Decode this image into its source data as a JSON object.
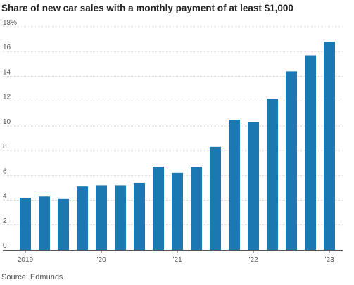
{
  "chart_data": {
    "type": "bar",
    "title": "Share of new car sales with a monthly payment of at least $1,000",
    "source": "Source: Edmunds",
    "xlabel": "",
    "ylabel": "",
    "ylim": [
      0,
      18
    ],
    "y_ticks": [
      0,
      2,
      4,
      6,
      8,
      10,
      12,
      14,
      16,
      18
    ],
    "y_tick_labels": [
      "0",
      "2",
      "4",
      "6",
      "8",
      "10",
      "12",
      "14",
      "16",
      "18%"
    ],
    "categories": [
      "2019 Q1",
      "2019 Q2",
      "2019 Q3",
      "2019 Q4",
      "2020 Q1",
      "2020 Q2",
      "2020 Q3",
      "2020 Q4",
      "2021 Q1",
      "2021 Q2",
      "2021 Q3",
      "2021 Q4",
      "2022 Q1",
      "2022 Q2",
      "2022 Q3",
      "2022 Q4",
      "2023 Q1"
    ],
    "values": [
      4.2,
      4.3,
      4.1,
      5.1,
      5.2,
      5.2,
      5.4,
      6.7,
      6.2,
      6.7,
      8.3,
      10.5,
      10.3,
      12.2,
      14.4,
      15.7,
      16.8
    ],
    "x_tick_labels": [
      {
        "index": 0,
        "label": "2019"
      },
      {
        "index": 4,
        "label": "’20"
      },
      {
        "index": 8,
        "label": "’21"
      },
      {
        "index": 12,
        "label": "’22"
      },
      {
        "index": 16,
        "label": "’23"
      }
    ],
    "bar_color": "#1c78b0",
    "grid": true
  }
}
